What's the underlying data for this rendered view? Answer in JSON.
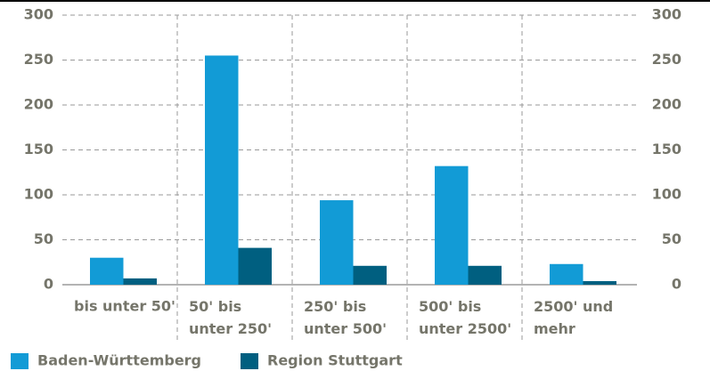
{
  "chart_data": {
    "type": "bar",
    "categories": [
      "bis unter 50'",
      "50' bis\nunter 250'",
      "250' bis\nunter 500'",
      "500' bis\nunter 2500'",
      "2500' und\nmehr"
    ],
    "series": [
      {
        "name": "Baden-Württemberg",
        "color": "#129bd6",
        "values": [
          30,
          255,
          94,
          132,
          23
        ]
      },
      {
        "name": "Region Stuttgart",
        "color": "#005f80",
        "values": [
          7,
          41,
          21,
          21,
          4
        ]
      }
    ],
    "ylim": [
      0,
      300
    ],
    "yticks": [
      0,
      50,
      100,
      150,
      200,
      250,
      300
    ],
    "y2lim": [
      0,
      300
    ],
    "y2ticks": [
      0,
      50,
      100,
      150,
      200,
      250,
      300
    ],
    "grid": true,
    "legend": "bottom"
  }
}
